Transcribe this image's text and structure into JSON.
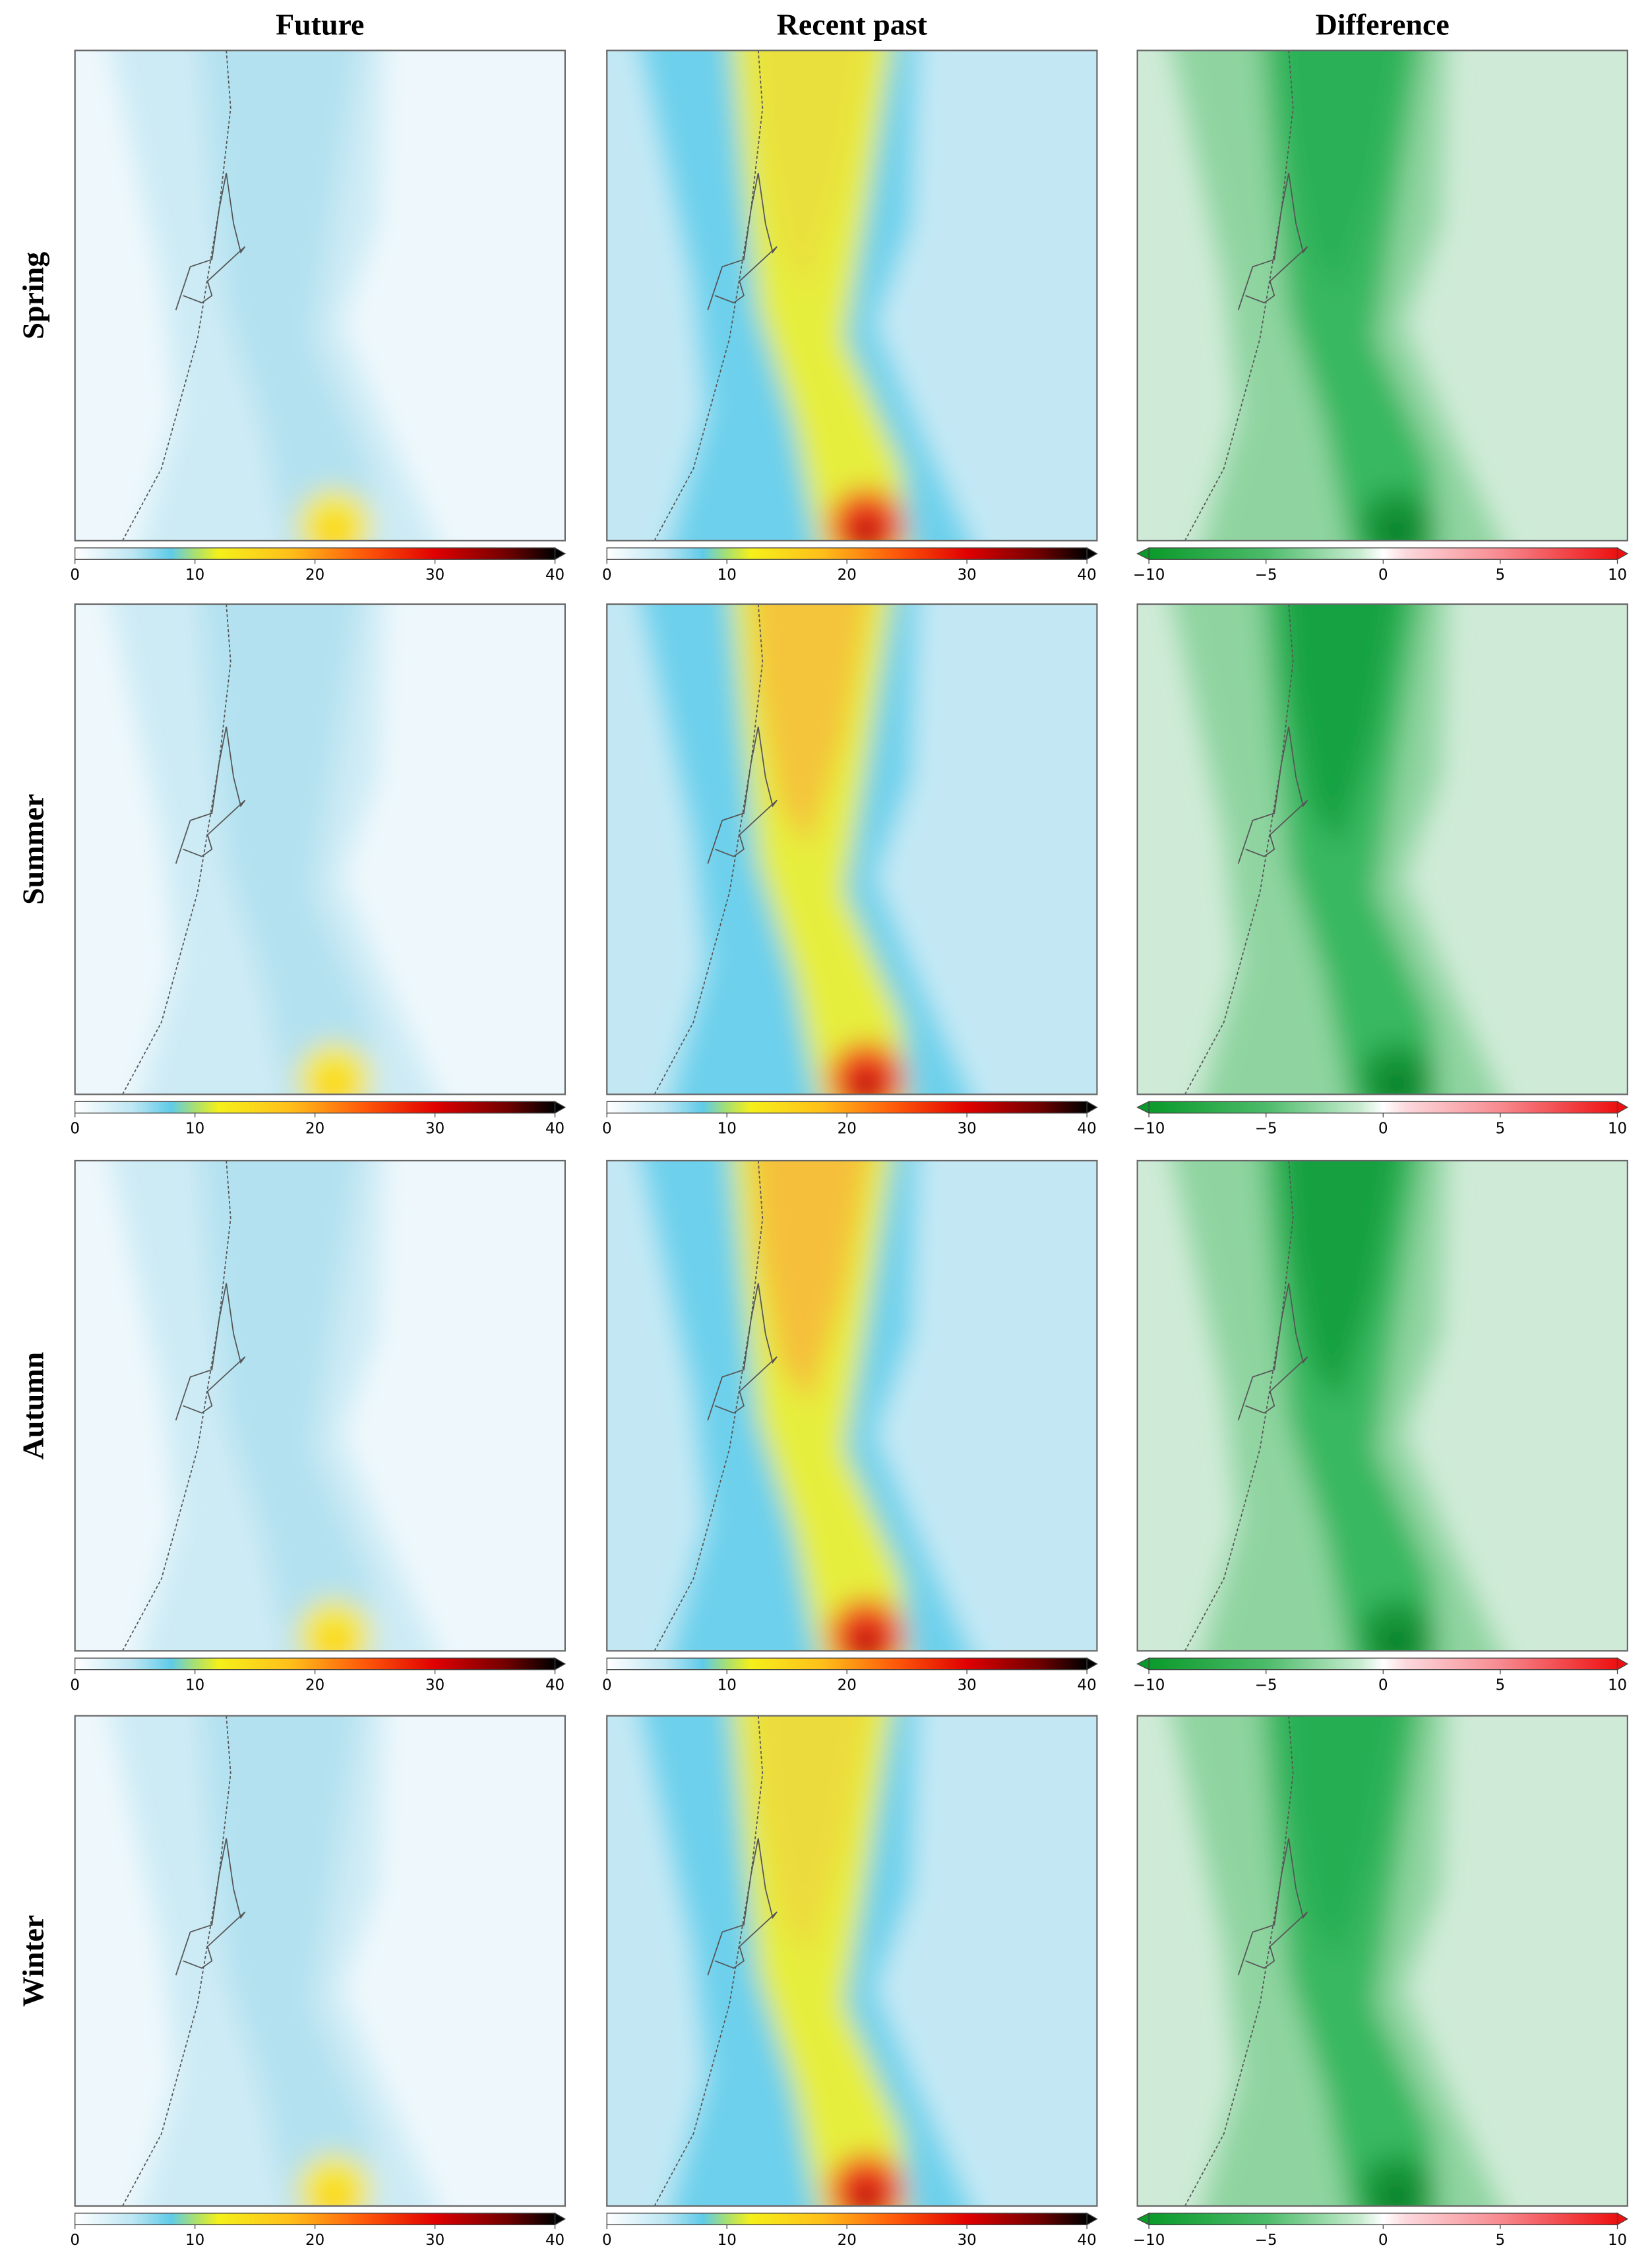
{
  "columns": [
    {
      "title": "Future",
      "colorbar": {
        "lim": [
          0,
          40
        ],
        "ticks": [
          0,
          10,
          20,
          30,
          40
        ]
      }
    },
    {
      "title": "Recent past",
      "colorbar": {
        "lim": [
          0,
          40
        ],
        "ticks": [
          0,
          10,
          20,
          30,
          40
        ]
      }
    },
    {
      "title": "Difference",
      "colorbar": {
        "lim": [
          -10,
          10
        ],
        "ticks": [
          {
            "value": -10,
            "label": "−10"
          },
          {
            "value": -5,
            "label": "−5"
          },
          0,
          5,
          10
        ]
      }
    }
  ],
  "rows": [
    "Spring",
    "Summer",
    "Autumn",
    "Winter"
  ]
}
